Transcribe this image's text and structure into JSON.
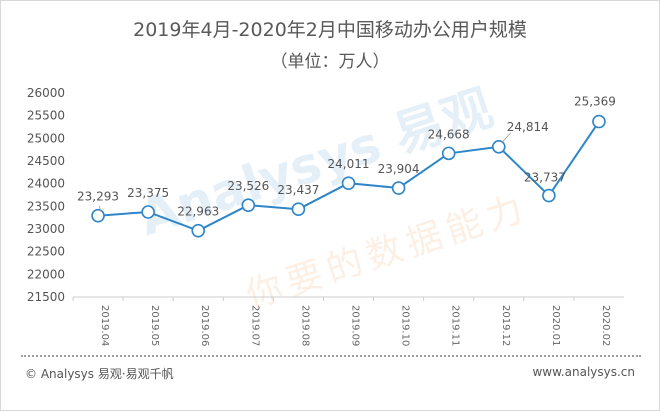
{
  "chart_data": {
    "type": "line",
    "title": "2019年4月-2020年2月中国移动办公用户规模",
    "subtitle": "（单位：万人）",
    "categories": [
      "2019.04",
      "2019.05",
      "2019.06",
      "2019.07",
      "2019.08",
      "2019.09",
      "2019.10",
      "2019.11",
      "2019.12",
      "2020.01",
      "2020.02"
    ],
    "values": [
      23293,
      23375,
      22963,
      23526,
      23437,
      24011,
      23904,
      24668,
      24814,
      23737,
      25369
    ],
    "labels": [
      "23,293",
      "23,375",
      "22,963",
      "23,526",
      "23,437",
      "24,011",
      "23,904",
      "24,668",
      "24,814",
      "23,737",
      "25,369"
    ],
    "yticks": [
      "26000",
      "25500",
      "25000",
      "24500",
      "24000",
      "23500",
      "23000",
      "22500",
      "22000",
      "21500"
    ],
    "ylim": [
      21500,
      26000
    ],
    "ystep": 500,
    "line_color": "#2e86c8",
    "marker_fill": "#ffffff"
  },
  "watermark": {
    "brand": "Analysys 易观",
    "slogan": "你要的数据能力"
  },
  "footer": {
    "left": "© Analysys 易观·易观千帆",
    "right": "www.analysys.cn"
  }
}
